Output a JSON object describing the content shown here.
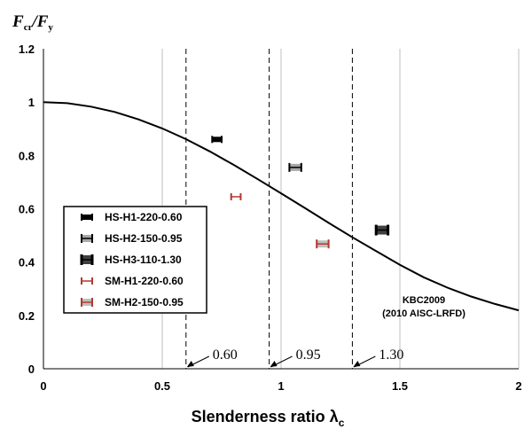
{
  "chart_data": {
    "type": "scatter",
    "title_main_1": "F",
    "title_sub_1": "cr",
    "title_slash": "/",
    "title_main_2": "F",
    "title_sub_2": "y",
    "xlabel": "Slenderness ratio λ",
    "xlabel_sub": "c",
    "xlim": [
      0,
      2
    ],
    "ylim": [
      0,
      1.2
    ],
    "x_ticks": [
      0,
      0.5,
      1,
      1.5,
      2
    ],
    "x_tick_labels": [
      "0",
      "0.5",
      "1",
      "1.5",
      "2"
    ],
    "y_ticks": [
      0,
      0.2,
      0.4,
      0.6,
      0.8,
      1.0,
      1.2
    ],
    "y_tick_labels": [
      "0",
      "0.2",
      "0.4",
      "0.6",
      "0.8",
      "1",
      "1.2"
    ],
    "grid_x": true,
    "grid_y": false,
    "curve": {
      "name": "KBC2009 (2010 AISC-LRFD)",
      "label_line1": "KBC2009",
      "label_line2": "(2010 AISC-LRFD)",
      "x": [
        0,
        0.1,
        0.2,
        0.3,
        0.4,
        0.5,
        0.6,
        0.7,
        0.8,
        0.9,
        1.0,
        1.1,
        1.2,
        1.3,
        1.4,
        1.5,
        1.6,
        1.7,
        1.8,
        1.9,
        2.0
      ],
      "y": [
        1.0,
        0.996,
        0.983,
        0.963,
        0.935,
        0.901,
        0.861,
        0.815,
        0.765,
        0.712,
        0.658,
        0.603,
        0.547,
        0.493,
        0.441,
        0.39,
        0.343,
        0.304,
        0.271,
        0.243,
        0.219
      ]
    },
    "reference_lines": [
      {
        "x": 0.6,
        "label": "0.60"
      },
      {
        "x": 0.95,
        "label": "0.95"
      },
      {
        "x": 1.3,
        "label": "1.30"
      }
    ],
    "series": [
      {
        "name": "HS-H1-220-0.60",
        "x": 0.73,
        "y": 0.86,
        "x_err": 0.02,
        "color": "#000000",
        "fill": "#000000",
        "thickness": 1
      },
      {
        "name": "HS-H2-150-0.95",
        "x": 1.06,
        "y": 0.755,
        "x_err": 0.025,
        "color": "#000000",
        "fill": "#a8a8a8",
        "thickness": 2
      },
      {
        "name": "HS-H3-110-1.30",
        "x": 1.425,
        "y": 0.52,
        "x_err": 0.025,
        "color": "#000000",
        "fill": "#404040",
        "thickness": 3
      },
      {
        "name": "SM-H1-220-0.60",
        "x": 0.81,
        "y": 0.645,
        "x_err": 0.02,
        "color": "#b03a2e",
        "fill": "#ffffff",
        "thickness": 1
      },
      {
        "name": "SM-H2-150-0.95",
        "x": 1.175,
        "y": 0.468,
        "x_err": 0.025,
        "color": "#b03a2e",
        "fill": "#bfbfbf",
        "thickness": 2
      }
    ],
    "legend_position": "lower-left"
  }
}
